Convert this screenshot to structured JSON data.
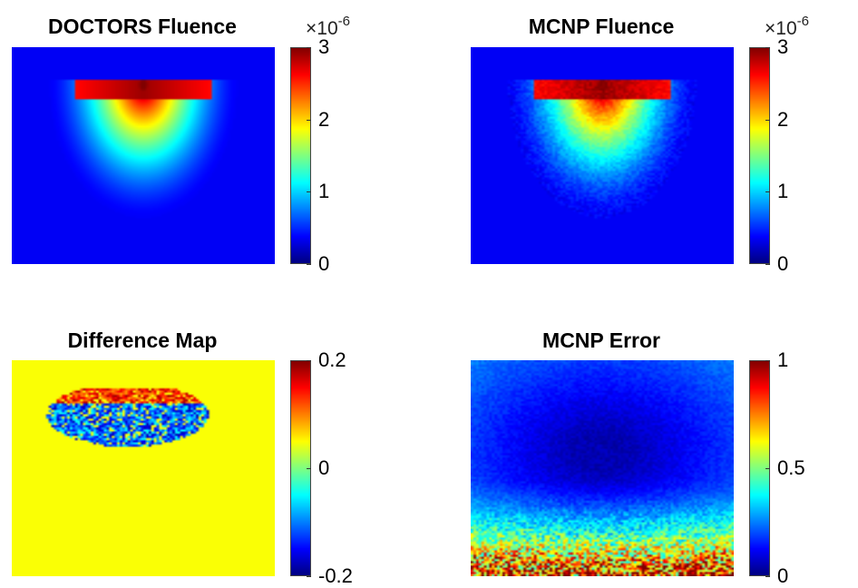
{
  "chart_data": [
    {
      "type": "heatmap",
      "title": "DOCTORS Fluence",
      "colormap": "jet",
      "clim": [
        0,
        3e-06
      ],
      "colorbar": {
        "ticks": [
          0,
          1,
          2,
          3
        ],
        "tick_labels": [
          "0",
          "1",
          "2",
          "3"
        ],
        "multiplier": "×10",
        "multiplier_exp": "-6"
      },
      "pattern": "fluence"
    },
    {
      "type": "heatmap",
      "title": "MCNP Fluence",
      "colormap": "jet",
      "clim": [
        0,
        3e-06
      ],
      "colorbar": {
        "ticks": [
          0,
          1,
          2,
          3
        ],
        "tick_labels": [
          "0",
          "1",
          "2",
          "3"
        ],
        "multiplier": "×10",
        "multiplier_exp": "-6"
      },
      "pattern": "fluence_noisy"
    },
    {
      "type": "heatmap",
      "title": "Difference Map",
      "colormap": "jet",
      "clim": [
        -0.2,
        0.2
      ],
      "colorbar": {
        "ticks": [
          -0.2,
          0,
          0.2
        ],
        "tick_labels": [
          "-0.2",
          "0",
          "0.2"
        ],
        "multiplier": "",
        "multiplier_exp": ""
      },
      "pattern": "difference"
    },
    {
      "type": "heatmap",
      "title": "MCNP Error",
      "colormap": "jet",
      "clim": [
        0,
        1
      ],
      "colorbar": {
        "ticks": [
          0,
          0.5,
          1
        ],
        "tick_labels": [
          "0",
          "0.5",
          "1"
        ],
        "multiplier": "",
        "multiplier_exp": ""
      },
      "pattern": "error"
    }
  ]
}
